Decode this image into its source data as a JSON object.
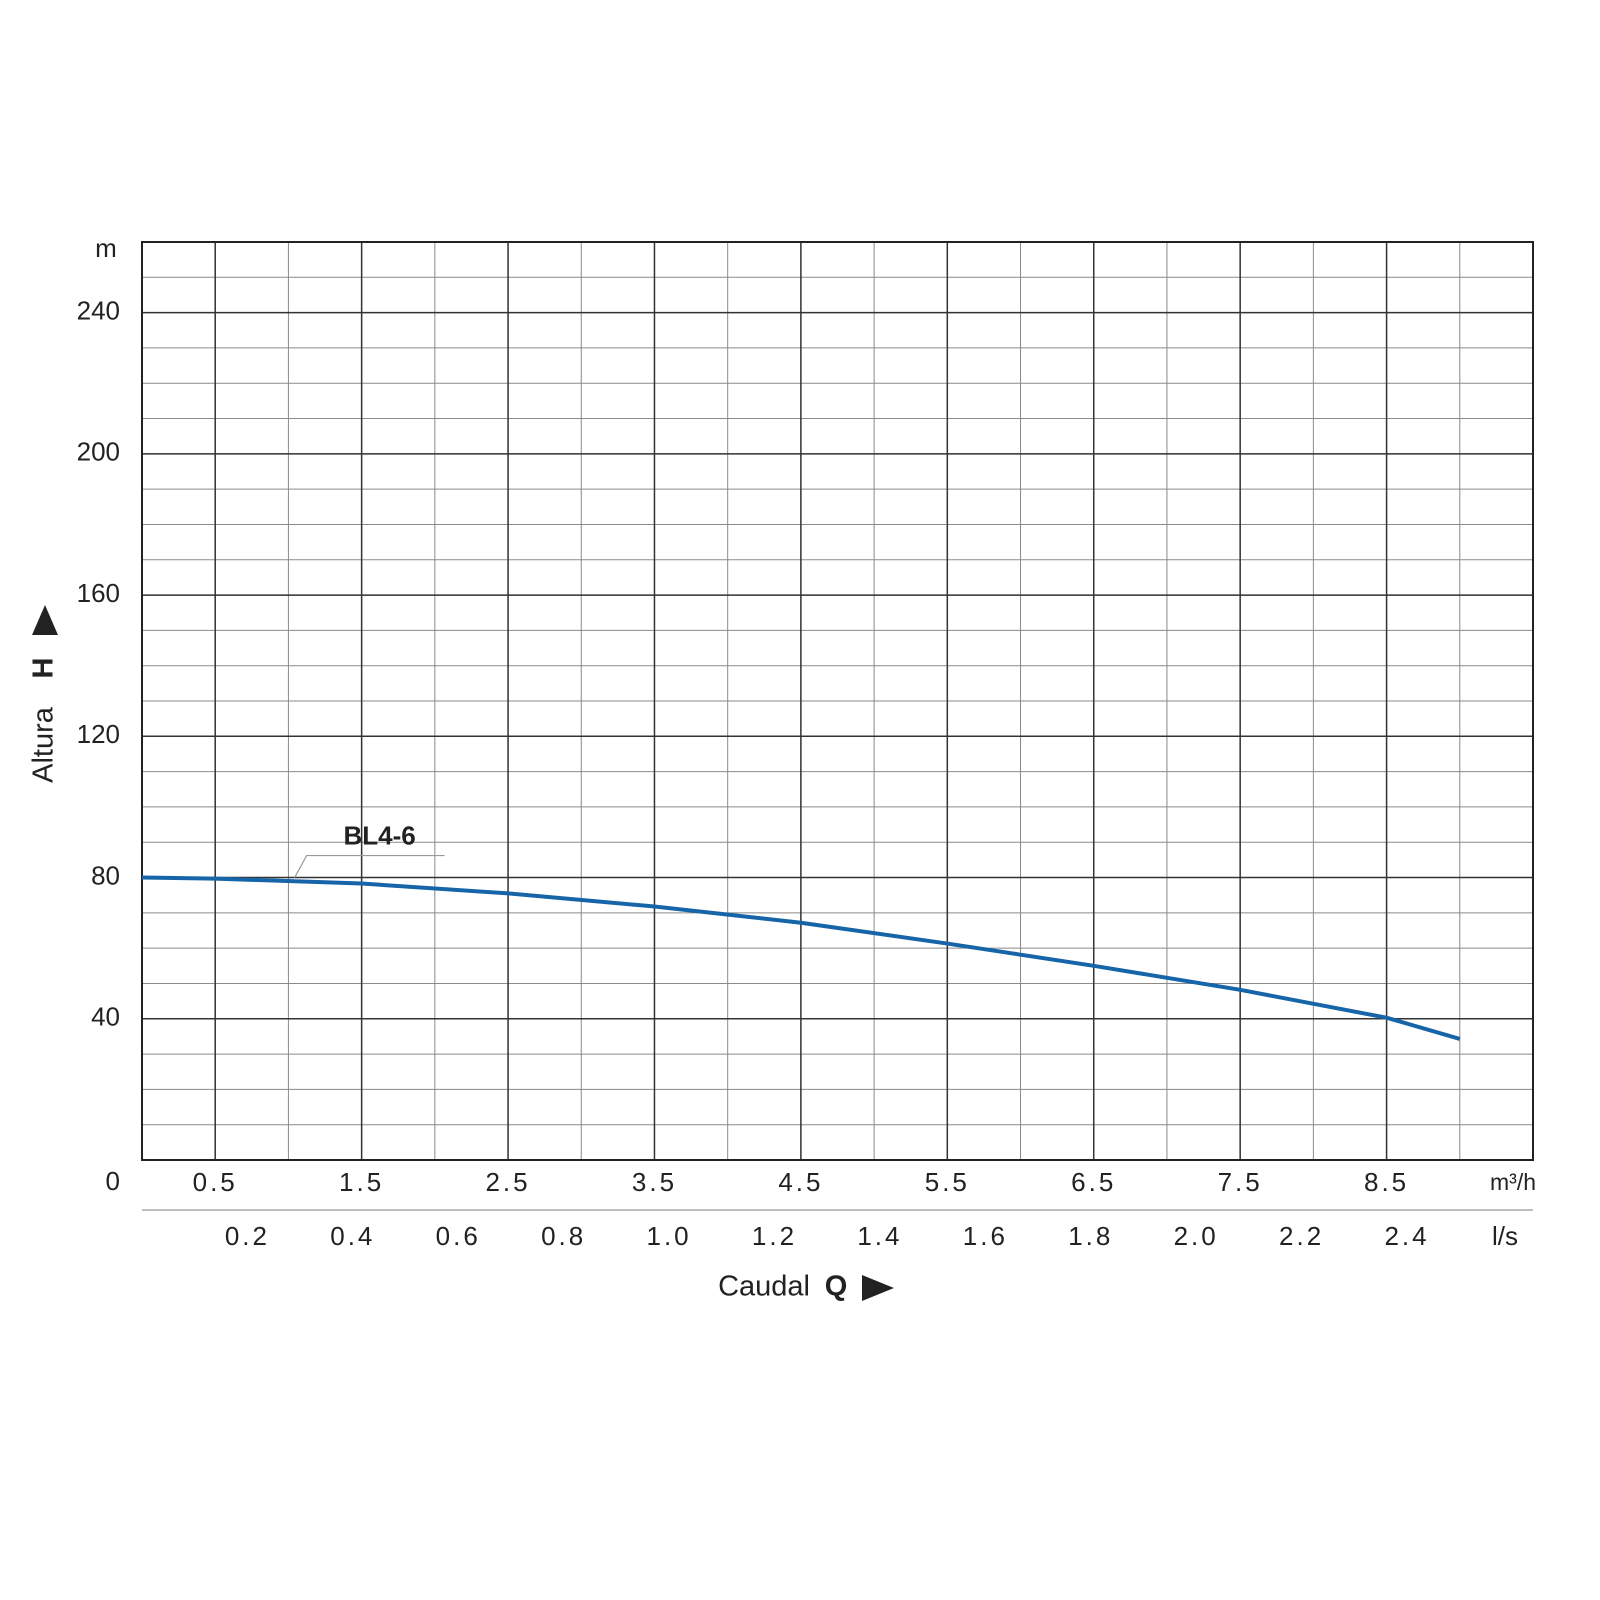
{
  "chart_data": {
    "type": "line",
    "y_unit": "m",
    "x_unit": "m³/h",
    "x2_unit": "l/s",
    "x_label": "Caudal",
    "x_symbol": "Q",
    "y_label": "Altura",
    "y_symbol": "H",
    "xlim": [
      0,
      9.5
    ],
    "ylim": [
      0,
      260
    ],
    "x2lim": [
      0,
      2.639
    ],
    "xticks": [
      0.5,
      1.5,
      2.5,
      3.5,
      4.5,
      5.5,
      6.5,
      7.5,
      8.5
    ],
    "x2ticks": [
      0.2,
      0.4,
      0.6,
      0.8,
      {
        "value": 1,
        "label": "1.0"
      },
      1.2,
      1.4,
      1.6,
      1.8,
      {
        "value": 2,
        "label": "2.0"
      },
      2.2,
      2.4
    ],
    "yticks": [
      0,
      40,
      80,
      120,
      160,
      200,
      240
    ],
    "grid": true,
    "minor_grid": {
      "x": 0.5,
      "y": 10
    },
    "x": [
      0,
      0.5,
      1.5,
      2.5,
      3.5,
      4.5,
      5.5,
      6.5,
      7.5,
      8.5,
      9.0
    ],
    "series": [
      {
        "name": "BL4-6",
        "color": "#1565a8",
        "values": [
          80,
          79.7,
          78.3,
          75.5,
          71.8,
          67.2,
          61.3,
          55.0,
          48.2,
          40.3,
          34.3
        ]
      }
    ]
  }
}
